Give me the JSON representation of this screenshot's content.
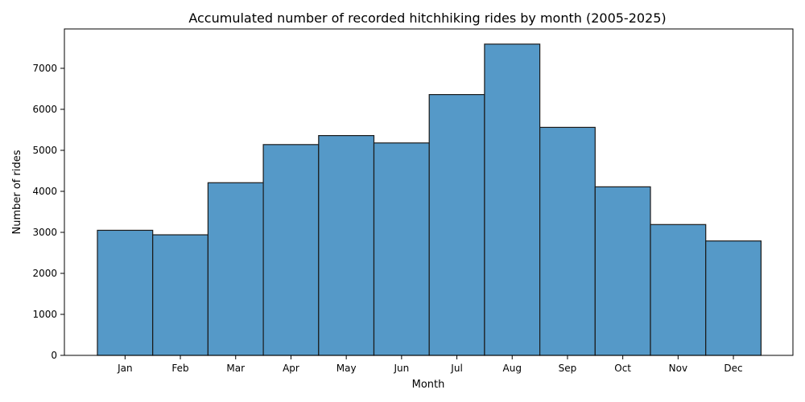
{
  "chart_data": {
    "type": "bar",
    "title": "Accumulated number of recorded hitchhiking rides by month (2005-2025)",
    "xlabel": "Month",
    "ylabel": "Number of rides",
    "categories": [
      "Jan",
      "Feb",
      "Mar",
      "Apr",
      "May",
      "Jun",
      "Jul",
      "Aug",
      "Sep",
      "Oct",
      "Nov",
      "Dec"
    ],
    "values": [
      3050,
      2940,
      4210,
      5140,
      5360,
      5180,
      6360,
      7590,
      5560,
      4110,
      3190,
      2790
    ],
    "yticks": [
      0,
      1000,
      2000,
      3000,
      4000,
      5000,
      6000,
      7000
    ],
    "ylim": [
      0,
      7960
    ],
    "grid": false,
    "bar_color": "#5599c8",
    "edge_color": "#1a1a1a"
  }
}
